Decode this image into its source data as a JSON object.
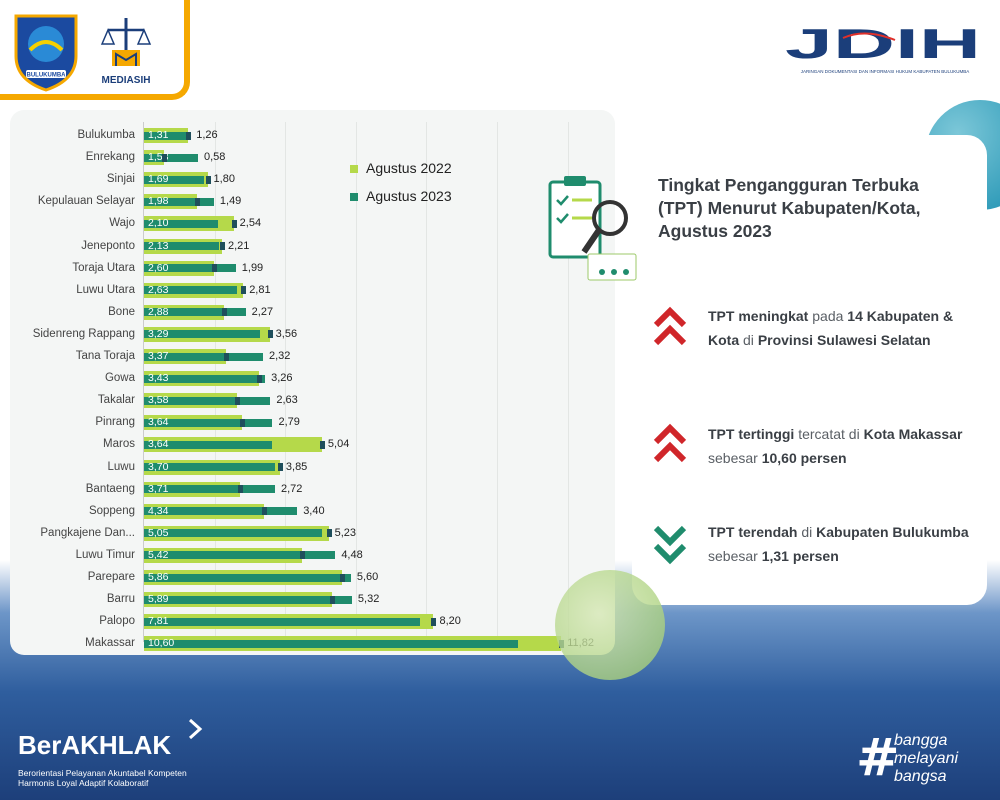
{
  "header": {
    "logo_left_text": "BULUKUMBA",
    "mediasih_label": "MEDIASIH",
    "jdih_text": "JDIH",
    "jdih_subtitle": "JARINGAN DOKUMENTASI DAN INFORMASI HUKUM KABUPATEN BULUKUMBA"
  },
  "chart_data": {
    "type": "bar",
    "title": "",
    "xlabel": "",
    "ylabel": "",
    "categories": [
      "Bulukumba",
      "Enrekang",
      "Sinjai",
      "Kepulauan Selayar",
      "Wajo",
      "Jeneponto",
      "Toraja Utara",
      "Luwu Utara",
      "Bone",
      "Sidenreng Rappang",
      "Tana Toraja",
      "Gowa",
      "Takalar",
      "Pinrang",
      "Maros",
      "Luwu",
      "Bantaeng",
      "Soppeng",
      "Pangkajene Dan...",
      "Luwu Timur",
      "Parepare",
      "Barru",
      "Palopo",
      "Makassar"
    ],
    "series": [
      {
        "name": "Agustus 2022",
        "color": "#b5d94a",
        "values": [
          1.26,
          0.58,
          1.8,
          1.49,
          2.54,
          2.21,
          1.99,
          2.81,
          2.27,
          3.56,
          2.32,
          3.26,
          2.63,
          2.79,
          5.04,
          3.85,
          2.72,
          3.4,
          5.23,
          4.48,
          5.6,
          5.32,
          8.2,
          11.82
        ]
      },
      {
        "name": "Agustus 2023",
        "color": "#1f8c6d",
        "values": [
          1.31,
          1.53,
          1.69,
          1.98,
          2.1,
          2.13,
          2.6,
          2.63,
          2.88,
          3.29,
          3.37,
          3.43,
          3.58,
          3.64,
          3.64,
          3.7,
          3.71,
          4.34,
          5.05,
          5.42,
          5.86,
          5.89,
          7.81,
          10.6
        ]
      }
    ],
    "labels_2022": [
      "1,26",
      "0,58",
      "1,80",
      "1,49",
      "2,54",
      "2,21",
      "1,99",
      "2,81",
      "2,27",
      "3,56",
      "2,32",
      "3,26",
      "2,63",
      "2,79",
      "5,04",
      "3,85",
      "2,72",
      "3,40",
      "5,23",
      "4,48",
      "5,60",
      "5,32",
      "8,20",
      "11,82"
    ],
    "labels_2023": [
      "1,31",
      "1,53",
      "1,69",
      "1,98",
      "2,10",
      "2,13",
      "2,60",
      "2,63",
      "2,88",
      "3,29",
      "3,37",
      "3,43",
      "3,58",
      "3,64",
      "3,64",
      "3,70",
      "3,71",
      "4,34",
      "5,05",
      "5,42",
      "5,86",
      "5,89",
      "7,81",
      "10,60"
    ],
    "xlim": [
      0,
      12
    ],
    "grid": true,
    "legend_position": "top-right"
  },
  "legend": {
    "item1": "Agustus 2022",
    "item2": "Agustus 2023"
  },
  "info": {
    "title": "Tingkat Pengangguran Terbuka (TPT) Menurut Kabupaten/Kota, Agustus 2023",
    "point1": {
      "a": "TPT meningkat",
      "b": " pada ",
      "c": "14 Kabupaten & Kota",
      "d": " di ",
      "e": "Provinsi Sulawesi Selatan"
    },
    "point2": {
      "a": "TPT tertinggi",
      "b": " tercatat di ",
      "c": "Kota Makassar",
      "d": " sebesar ",
      "e": "10,60 persen"
    },
    "point3": {
      "a": "TPT terendah",
      "b": " di ",
      "c": "Kabupaten Bulukumba",
      "d": " sebesar ",
      "e": "1,31 persen"
    }
  },
  "footer": {
    "berakhlak": "BerAKHLAK",
    "berakhlak_sub1": "Berorientasi Pelayanan Akuntabel Kompeten",
    "berakhlak_sub2": "Harmonis Loyal Adaptif Kolaboratif",
    "bangga1": "bangga",
    "bangga2": "melayani",
    "bangga3": "bangsa"
  },
  "colors": {
    "up_arrow": "#d0262a",
    "down_arrow": "#1f8c6d",
    "bar_2022": "#b5d94a",
    "bar_2023": "#1f8c6d"
  }
}
